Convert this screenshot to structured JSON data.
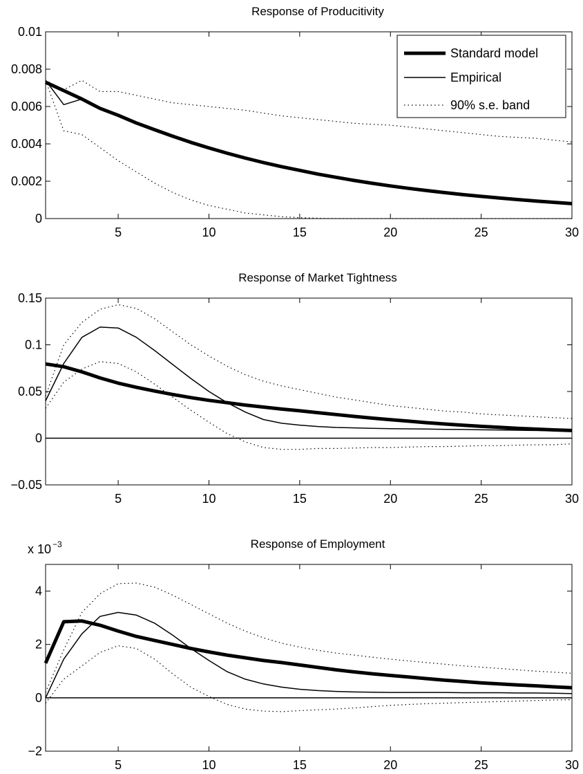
{
  "legend": {
    "position": "top-right",
    "entries": [
      "Standard model",
      "Empirical",
      "90% s.e. band"
    ]
  },
  "colors": {
    "line": "#000000",
    "background": "#ffffff"
  },
  "chart_data": [
    {
      "type": "line",
      "title": "Response of Producitivity",
      "xlabel": "",
      "ylabel": "",
      "xlim": [
        1,
        30
      ],
      "ylim": [
        0,
        0.01
      ],
      "xticks": [
        "5",
        "10",
        "15",
        "20",
        "25",
        "30"
      ],
      "yticks": [
        "0",
        "0.002",
        "0.004",
        "0.006",
        "0.008",
        "0.01"
      ],
      "zero_line": false,
      "x": [
        1,
        2,
        3,
        4,
        5,
        6,
        7,
        8,
        9,
        10,
        11,
        12,
        13,
        14,
        15,
        16,
        17,
        18,
        19,
        20,
        21,
        22,
        23,
        24,
        25,
        26,
        27,
        28,
        29,
        30
      ],
      "series": [
        {
          "name": "Standard model",
          "style": "thick",
          "values": [
            0.0073,
            0.00685,
            0.0064,
            0.0059,
            0.00553,
            0.00512,
            0.00476,
            0.00441,
            0.00408,
            0.00378,
            0.0035,
            0.00324,
            0.003,
            0.00278,
            0.00258,
            0.00238,
            0.00221,
            0.00204,
            0.00189,
            0.00175,
            0.00162,
            0.0015,
            0.00139,
            0.00128,
            0.00119,
            0.0011,
            0.00102,
            0.00094,
            0.00087,
            0.0008
          ]
        },
        {
          "name": "Empirical",
          "style": "thin",
          "values": [
            0.0074,
            0.0061,
            0.0064,
            0.0059,
            0.00553,
            0.00512,
            0.00476,
            0.00441,
            0.00408,
            0.00378,
            0.0035,
            0.00324,
            0.003,
            0.00278,
            0.00258,
            0.00238,
            0.00221,
            0.00204,
            0.00189,
            0.00175,
            0.00162,
            0.0015,
            0.00139,
            0.00128,
            0.00119,
            0.0011,
            0.00102,
            0.00094,
            0.00087,
            0.0008
          ]
        },
        {
          "name": "90% s.e. band",
          "style": "dotted",
          "values": [
            0.0074,
            0.0069,
            0.0074,
            0.0068,
            0.0068,
            0.0066,
            0.0064,
            0.0062,
            0.0061,
            0.006,
            0.0059,
            0.0058,
            0.00565,
            0.0055,
            0.0054,
            0.0053,
            0.0052,
            0.0051,
            0.00505,
            0.005,
            0.0049,
            0.0048,
            0.0047,
            0.0046,
            0.0045,
            0.0044,
            0.00435,
            0.0043,
            0.0042,
            0.0041
          ]
        },
        {
          "style": "dotted",
          "values": [
            0.0074,
            0.0047,
            0.0045,
            0.0038,
            0.0031,
            0.0025,
            0.0019,
            0.0014,
            0.001,
            0.0007,
            0.0005,
            0.0003,
            0.0002,
            0.0001,
            5e-05,
            2e-05,
            0,
            0,
            0,
            0,
            0,
            0,
            0,
            0,
            0,
            0,
            0,
            0,
            0,
            0
          ]
        }
      ]
    },
    {
      "type": "line",
      "title": "Response of Market Tightness",
      "xlabel": "",
      "ylabel": "",
      "xlim": [
        1,
        30
      ],
      "ylim": [
        -0.05,
        0.15
      ],
      "xticks": [
        "5",
        "10",
        "15",
        "20",
        "25",
        "30"
      ],
      "yticks": [
        "−0.05",
        "0",
        "0.05",
        "0.1",
        "0.15"
      ],
      "zero_line": true,
      "x": [
        1,
        2,
        3,
        4,
        5,
        6,
        7,
        8,
        9,
        10,
        11,
        12,
        13,
        14,
        15,
        16,
        17,
        18,
        19,
        20,
        21,
        22,
        23,
        24,
        25,
        26,
        27,
        28,
        29,
        30
      ],
      "series": [
        {
          "name": "Standard model",
          "style": "thick",
          "values": [
            0.0795,
            0.0765,
            0.071,
            0.0645,
            0.059,
            0.0545,
            0.0505,
            0.0468,
            0.0435,
            0.0405,
            0.038,
            0.0355,
            0.0333,
            0.0312,
            0.0293,
            0.0273,
            0.0253,
            0.0233,
            0.0215,
            0.0198,
            0.0182,
            0.0166,
            0.0152,
            0.0139,
            0.0127,
            0.0116,
            0.0106,
            0.0097,
            0.0089,
            0.0082
          ]
        },
        {
          "name": "Empirical",
          "style": "thin",
          "values": [
            0.04,
            0.08,
            0.108,
            0.119,
            0.118,
            0.108,
            0.094,
            0.079,
            0.064,
            0.05,
            0.038,
            0.028,
            0.02,
            0.016,
            0.014,
            0.0125,
            0.0115,
            0.011,
            0.0105,
            0.0102,
            0.01,
            0.0098,
            0.0095,
            0.0093,
            0.009,
            0.0088,
            0.0085,
            0.0082,
            0.008,
            0.0078
          ]
        },
        {
          "name": "90% s.e. band",
          "style": "dotted",
          "values": [
            0.045,
            0.1,
            0.124,
            0.138,
            0.143,
            0.139,
            0.128,
            0.114,
            0.1,
            0.088,
            0.077,
            0.068,
            0.061,
            0.056,
            0.052,
            0.048,
            0.044,
            0.041,
            0.038,
            0.035,
            0.033,
            0.031,
            0.029,
            0.028,
            0.026,
            0.025,
            0.024,
            0.023,
            0.022,
            0.021
          ]
        },
        {
          "style": "dotted",
          "values": [
            0.032,
            0.06,
            0.074,
            0.082,
            0.08,
            0.071,
            0.058,
            0.044,
            0.03,
            0.017,
            0.005,
            -0.004,
            -0.01,
            -0.012,
            -0.012,
            -0.011,
            -0.011,
            -0.0105,
            -0.01,
            -0.01,
            -0.0095,
            -0.009,
            -0.009,
            -0.0085,
            -0.008,
            -0.008,
            -0.0075,
            -0.007,
            -0.007,
            -0.006
          ]
        }
      ]
    },
    {
      "type": "line",
      "title": "Response of Employment",
      "scale_label": "x 10",
      "scale_exponent": "−3",
      "xlabel": "",
      "ylabel": "",
      "xlim": [
        1,
        30
      ],
      "ylim": [
        -2,
        5
      ],
      "xticks": [
        "5",
        "10",
        "15",
        "20",
        "25",
        "30"
      ],
      "yticks": [
        "−2",
        "0",
        "2",
        "4"
      ],
      "zero_line": true,
      "x": [
        1,
        2,
        3,
        4,
        5,
        6,
        7,
        8,
        9,
        10,
        11,
        12,
        13,
        14,
        15,
        16,
        17,
        18,
        19,
        20,
        21,
        22,
        23,
        24,
        25,
        26,
        27,
        28,
        29,
        30
      ],
      "series": [
        {
          "name": "Standard model",
          "style": "thick",
          "values": [
            1.3,
            2.85,
            2.88,
            2.72,
            2.5,
            2.3,
            2.15,
            2.0,
            1.85,
            1.72,
            1.6,
            1.5,
            1.4,
            1.32,
            1.23,
            1.14,
            1.05,
            0.97,
            0.9,
            0.84,
            0.78,
            0.72,
            0.66,
            0.61,
            0.56,
            0.52,
            0.48,
            0.45,
            0.41,
            0.38
          ]
        },
        {
          "name": "Empirical",
          "style": "thin",
          "values": [
            0,
            1.45,
            2.4,
            3.05,
            3.2,
            3.1,
            2.8,
            2.35,
            1.85,
            1.4,
            0.98,
            0.7,
            0.52,
            0.4,
            0.32,
            0.27,
            0.24,
            0.22,
            0.21,
            0.2,
            0.2,
            0.2,
            0.2,
            0.19,
            0.19,
            0.19,
            0.18,
            0.18,
            0.17,
            0.16
          ]
        },
        {
          "name": "90% s.e. band",
          "style": "dotted",
          "values": [
            0.2,
            1.8,
            3.2,
            3.9,
            4.28,
            4.3,
            4.15,
            3.85,
            3.5,
            3.15,
            2.8,
            2.5,
            2.25,
            2.05,
            1.9,
            1.78,
            1.68,
            1.6,
            1.52,
            1.45,
            1.38,
            1.32,
            1.26,
            1.2,
            1.15,
            1.1,
            1.05,
            1.0,
            0.96,
            0.92
          ]
        },
        {
          "style": "dotted",
          "values": [
            -0.2,
            0.7,
            1.2,
            1.7,
            1.95,
            1.85,
            1.45,
            0.9,
            0.4,
            0.05,
            -0.25,
            -0.42,
            -0.5,
            -0.52,
            -0.48,
            -0.45,
            -0.42,
            -0.38,
            -0.33,
            -0.28,
            -0.25,
            -0.22,
            -0.2,
            -0.18,
            -0.16,
            -0.14,
            -0.12,
            -0.1,
            -0.08,
            -0.07
          ]
        }
      ]
    }
  ]
}
